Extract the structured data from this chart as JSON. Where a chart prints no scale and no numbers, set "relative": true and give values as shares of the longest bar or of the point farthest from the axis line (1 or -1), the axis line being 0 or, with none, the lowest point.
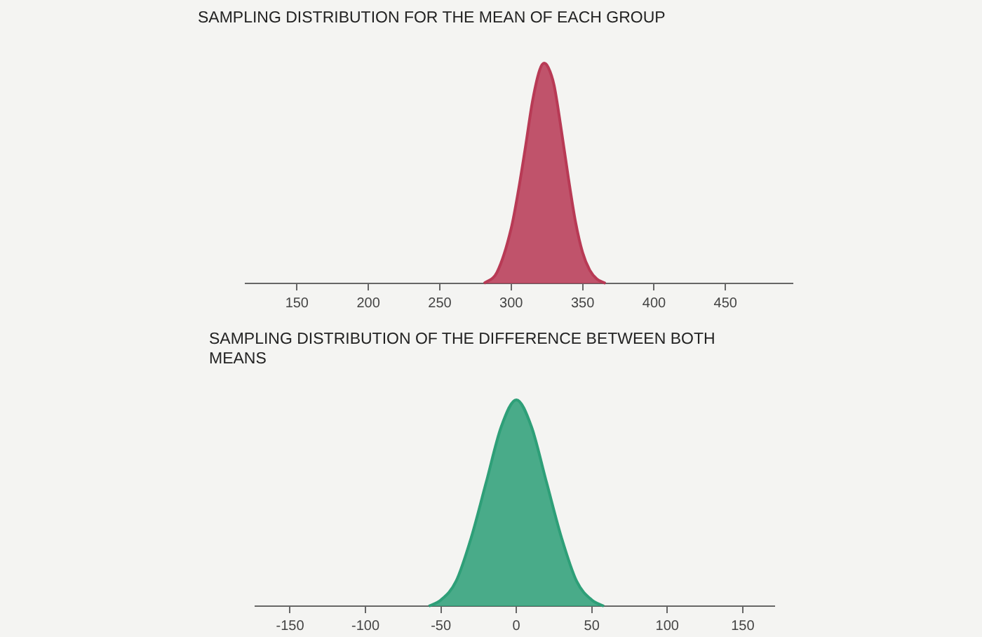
{
  "chart_data": [
    {
      "type": "area",
      "title": "SAMPLING DISTRIBUTION FOR THE MEAN OF EACH GROUP",
      "relative": true,
      "color": "#b83a55",
      "x": [
        281,
        290,
        300,
        305,
        310,
        315,
        320,
        323,
        326,
        330,
        335,
        340,
        345,
        350,
        355,
        360,
        366
      ],
      "values": [
        0,
        0.05,
        0.25,
        0.42,
        0.62,
        0.83,
        0.97,
        1,
        0.98,
        0.9,
        0.7,
        0.48,
        0.28,
        0.14,
        0.06,
        0.02,
        0
      ],
      "xlim": [
        114,
        497
      ],
      "xticks": [
        150,
        200,
        250,
        300,
        350,
        400,
        450
      ],
      "grid": false,
      "legend": false
    },
    {
      "type": "area",
      "title": "SAMPLING DISTRIBUTION OF THE DIFFERENCE BETWEEN BOTH MEANS",
      "relative": true,
      "color": "#2e9f78",
      "x": [
        -58,
        -50,
        -40,
        -30,
        -20,
        -10,
        0,
        10,
        20,
        30,
        40,
        50,
        58
      ],
      "values": [
        0,
        0.03,
        0.12,
        0.33,
        0.6,
        0.87,
        1,
        0.87,
        0.6,
        0.33,
        0.12,
        0.03,
        0
      ],
      "xlim": [
        -173,
        171
      ],
      "xticks": [
        -150,
        -100,
        -50,
        0,
        50,
        100,
        150
      ],
      "grid": false,
      "legend": false
    }
  ]
}
